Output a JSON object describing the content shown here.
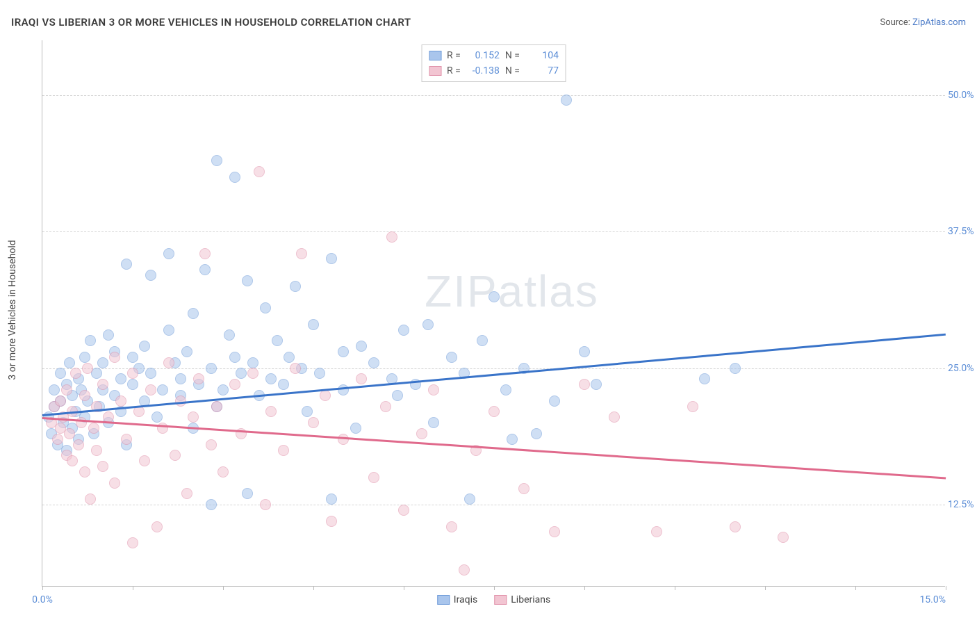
{
  "title": "IRAQI VS LIBERIAN 3 OR MORE VEHICLES IN HOUSEHOLD CORRELATION CHART",
  "source_label": "Source: ",
  "source_name": "ZipAtlas.com",
  "y_axis_label": "3 or more Vehicles in Household",
  "watermark_main": "ZIP",
  "watermark_sub": "atlas",
  "chart": {
    "type": "scatter",
    "background_color": "#ffffff",
    "grid_color": "#d5d5d5",
    "axis_color": "#bbbbbb",
    "tick_label_color": "#5b8dd6",
    "xlim": [
      0,
      15
    ],
    "ylim": [
      5,
      55
    ],
    "x_ticks": [
      0,
      1.5,
      3.0,
      4.5,
      6.0,
      7.5,
      9.0,
      10.5,
      12.0,
      13.5,
      15.0
    ],
    "x_tick_labels": {
      "0": "0.0%",
      "15": "15.0%"
    },
    "y_gridlines": [
      12.5,
      25.0,
      37.5,
      50.0
    ],
    "y_tick_labels": [
      "12.5%",
      "25.0%",
      "37.5%",
      "50.0%"
    ],
    "point_radius": 8,
    "point_opacity": 0.55,
    "line_width": 2.5
  },
  "series": [
    {
      "name": "Iraqis",
      "color_fill": "#a9c5ec",
      "color_stroke": "#6d9ad8",
      "R": "0.152",
      "N": "104",
      "trend": {
        "x1": 0,
        "y1": 20.8,
        "x2": 15,
        "y2": 28.2,
        "color": "#3a74c9"
      },
      "points": [
        [
          0.1,
          20.5
        ],
        [
          0.15,
          19.0
        ],
        [
          0.2,
          21.5
        ],
        [
          0.2,
          23.0
        ],
        [
          0.25,
          18.0
        ],
        [
          0.3,
          24.5
        ],
        [
          0.3,
          22.0
        ],
        [
          0.35,
          20.0
        ],
        [
          0.4,
          23.5
        ],
        [
          0.4,
          17.5
        ],
        [
          0.45,
          25.5
        ],
        [
          0.5,
          19.5
        ],
        [
          0.5,
          22.5
        ],
        [
          0.55,
          21.0
        ],
        [
          0.6,
          24.0
        ],
        [
          0.6,
          18.5
        ],
        [
          0.65,
          23.0
        ],
        [
          0.7,
          20.5
        ],
        [
          0.7,
          26.0
        ],
        [
          0.75,
          22.0
        ],
        [
          0.8,
          27.5
        ],
        [
          0.85,
          19.0
        ],
        [
          0.9,
          24.5
        ],
        [
          0.95,
          21.5
        ],
        [
          1.0,
          23.0
        ],
        [
          1.0,
          25.5
        ],
        [
          1.1,
          20.0
        ],
        [
          1.1,
          28.0
        ],
        [
          1.2,
          22.5
        ],
        [
          1.2,
          26.5
        ],
        [
          1.3,
          24.0
        ],
        [
          1.3,
          21.0
        ],
        [
          1.4,
          34.5
        ],
        [
          1.4,
          18.0
        ],
        [
          1.5,
          23.5
        ],
        [
          1.5,
          26.0
        ],
        [
          1.6,
          25.0
        ],
        [
          1.7,
          22.0
        ],
        [
          1.7,
          27.0
        ],
        [
          1.8,
          24.5
        ],
        [
          1.8,
          33.5
        ],
        [
          1.9,
          20.5
        ],
        [
          2.0,
          23.0
        ],
        [
          2.1,
          28.5
        ],
        [
          2.1,
          35.5
        ],
        [
          2.2,
          25.5
        ],
        [
          2.3,
          22.5
        ],
        [
          2.3,
          24.0
        ],
        [
          2.4,
          26.5
        ],
        [
          2.5,
          19.5
        ],
        [
          2.5,
          30.0
        ],
        [
          2.6,
          23.5
        ],
        [
          2.7,
          34.0
        ],
        [
          2.8,
          25.0
        ],
        [
          2.8,
          12.5
        ],
        [
          2.9,
          44.0
        ],
        [
          2.9,
          21.5
        ],
        [
          3.0,
          23.0
        ],
        [
          3.1,
          28.0
        ],
        [
          3.2,
          42.5
        ],
        [
          3.2,
          26.0
        ],
        [
          3.3,
          24.5
        ],
        [
          3.4,
          33.0
        ],
        [
          3.4,
          13.5
        ],
        [
          3.5,
          25.5
        ],
        [
          3.6,
          22.5
        ],
        [
          3.7,
          30.5
        ],
        [
          3.8,
          24.0
        ],
        [
          3.9,
          27.5
        ],
        [
          4.0,
          23.5
        ],
        [
          4.1,
          26.0
        ],
        [
          4.2,
          32.5
        ],
        [
          4.3,
          25.0
        ],
        [
          4.4,
          21.0
        ],
        [
          4.5,
          29.0
        ],
        [
          4.6,
          24.5
        ],
        [
          4.8,
          35.0
        ],
        [
          4.8,
          13.0
        ],
        [
          5.0,
          23.0
        ],
        [
          5.0,
          26.5
        ],
        [
          5.2,
          19.5
        ],
        [
          5.3,
          27.0
        ],
        [
          5.5,
          25.5
        ],
        [
          5.8,
          24.0
        ],
        [
          5.9,
          22.5
        ],
        [
          6.0,
          28.5
        ],
        [
          6.2,
          23.5
        ],
        [
          6.4,
          29.0
        ],
        [
          6.5,
          20.0
        ],
        [
          6.8,
          26.0
        ],
        [
          7.0,
          24.5
        ],
        [
          7.1,
          13.0
        ],
        [
          7.3,
          27.5
        ],
        [
          7.5,
          31.5
        ],
        [
          7.7,
          23.0
        ],
        [
          7.8,
          18.5
        ],
        [
          8.0,
          25.0
        ],
        [
          8.2,
          19.0
        ],
        [
          8.7,
          49.5
        ],
        [
          9.0,
          26.5
        ],
        [
          9.2,
          23.5
        ],
        [
          11.0,
          24.0
        ],
        [
          11.5,
          25.0
        ],
        [
          8.5,
          22.0
        ]
      ]
    },
    {
      "name": "Liberians",
      "color_fill": "#f2c5d2",
      "color_stroke": "#e090a9",
      "R": "-0.138",
      "N": "77",
      "trend": {
        "x1": 0,
        "y1": 20.5,
        "x2": 15,
        "y2": 15.0,
        "color": "#e06a8c"
      },
      "points": [
        [
          0.15,
          20.0
        ],
        [
          0.2,
          21.5
        ],
        [
          0.25,
          18.5
        ],
        [
          0.3,
          19.5
        ],
        [
          0.3,
          22.0
        ],
        [
          0.35,
          20.5
        ],
        [
          0.4,
          17.0
        ],
        [
          0.4,
          23.0
        ],
        [
          0.45,
          19.0
        ],
        [
          0.5,
          16.5
        ],
        [
          0.5,
          21.0
        ],
        [
          0.55,
          24.5
        ],
        [
          0.6,
          18.0
        ],
        [
          0.65,
          20.0
        ],
        [
          0.7,
          22.5
        ],
        [
          0.7,
          15.5
        ],
        [
          0.75,
          25.0
        ],
        [
          0.8,
          13.0
        ],
        [
          0.85,
          19.5
        ],
        [
          0.9,
          21.5
        ],
        [
          0.9,
          17.5
        ],
        [
          1.0,
          23.5
        ],
        [
          1.0,
          16.0
        ],
        [
          1.1,
          20.5
        ],
        [
          1.2,
          26.0
        ],
        [
          1.2,
          14.5
        ],
        [
          1.3,
          22.0
        ],
        [
          1.4,
          18.5
        ],
        [
          1.5,
          24.5
        ],
        [
          1.5,
          9.0
        ],
        [
          1.6,
          21.0
        ],
        [
          1.7,
          16.5
        ],
        [
          1.8,
          23.0
        ],
        [
          1.9,
          10.5
        ],
        [
          2.0,
          19.5
        ],
        [
          2.1,
          25.5
        ],
        [
          2.2,
          17.0
        ],
        [
          2.3,
          22.0
        ],
        [
          2.4,
          13.5
        ],
        [
          2.5,
          20.5
        ],
        [
          2.6,
          24.0
        ],
        [
          2.7,
          35.5
        ],
        [
          2.8,
          18.0
        ],
        [
          2.9,
          21.5
        ],
        [
          3.0,
          15.5
        ],
        [
          3.2,
          23.5
        ],
        [
          3.3,
          19.0
        ],
        [
          3.5,
          24.5
        ],
        [
          3.6,
          43.0
        ],
        [
          3.7,
          12.5
        ],
        [
          3.8,
          21.0
        ],
        [
          4.0,
          17.5
        ],
        [
          4.2,
          25.0
        ],
        [
          4.3,
          35.5
        ],
        [
          4.5,
          20.0
        ],
        [
          4.7,
          22.5
        ],
        [
          4.8,
          11.0
        ],
        [
          5.0,
          18.5
        ],
        [
          5.3,
          24.0
        ],
        [
          5.5,
          15.0
        ],
        [
          5.7,
          21.5
        ],
        [
          5.8,
          37.0
        ],
        [
          6.0,
          12.0
        ],
        [
          6.3,
          19.0
        ],
        [
          6.5,
          23.0
        ],
        [
          6.8,
          10.5
        ],
        [
          7.0,
          6.5
        ],
        [
          7.2,
          17.5
        ],
        [
          7.5,
          21.0
        ],
        [
          8.0,
          14.0
        ],
        [
          8.5,
          10.0
        ],
        [
          9.0,
          23.5
        ],
        [
          9.5,
          20.5
        ],
        [
          10.2,
          10.0
        ],
        [
          10.8,
          21.5
        ],
        [
          11.5,
          10.5
        ],
        [
          12.3,
          9.5
        ]
      ]
    }
  ],
  "legend_top_labels": {
    "R": "R =",
    "N": "N ="
  },
  "legend_bottom": [
    "Iraqis",
    "Liberians"
  ]
}
